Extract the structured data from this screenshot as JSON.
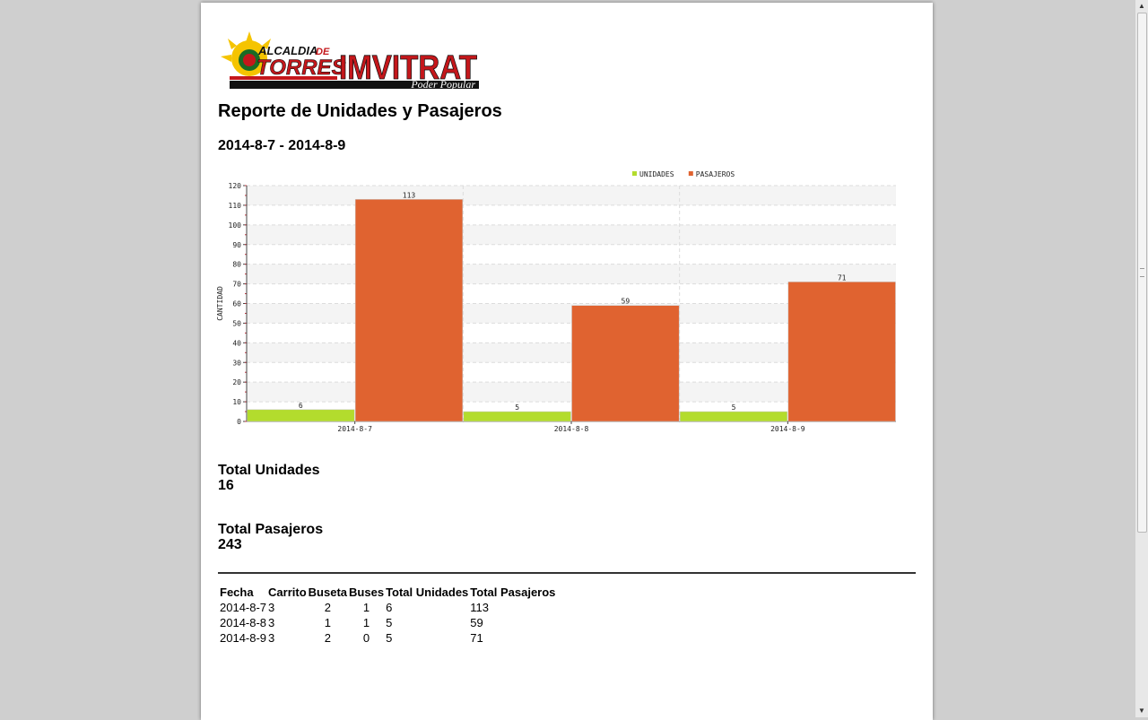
{
  "logo": {
    "line1_a": "ALCALDIA",
    "line1_b": "DE",
    "line2": "TORRES",
    "brand": "IMVITRAT",
    "tagline": "Poder Popular"
  },
  "report": {
    "title": "Reporte de Unidades y Pasajeros",
    "range": "2014-8-7 - 2014-8-9"
  },
  "chart_data": {
    "type": "bar",
    "categories": [
      "2014-8-7",
      "2014-8-8",
      "2014-8-9"
    ],
    "series": [
      {
        "name": "UNIDADES",
        "values": [
          6,
          5,
          5
        ],
        "color": "#b3dc2d"
      },
      {
        "name": "PASAJEROS",
        "values": [
          113,
          59,
          71
        ],
        "color": "#e06330"
      }
    ],
    "ylabel": "CANTIDAD",
    "ylim": [
      0,
      120
    ],
    "yticks": [
      0,
      10,
      20,
      30,
      40,
      50,
      60,
      70,
      80,
      90,
      100,
      110,
      120
    ],
    "grid": true,
    "legend": "top-right",
    "data_labels": true
  },
  "totals": {
    "unidades_label": "Total Unidades",
    "unidades_value": "16",
    "pasajeros_label": "Total Pasajeros",
    "pasajeros_value": "243"
  },
  "table": {
    "headers": [
      "Fecha",
      "Carrito",
      "Buseta",
      "Buses",
      "Total Unidades",
      "Total Pasajeros"
    ],
    "rows": [
      [
        "2014-8-7",
        "3",
        "2",
        "1",
        "6",
        "113"
      ],
      [
        "2014-8-8",
        "3",
        "1",
        "1",
        "5",
        "59"
      ],
      [
        "2014-8-9",
        "3",
        "2",
        "0",
        "5",
        "71"
      ]
    ]
  },
  "scrollbar": {
    "up_icon": "▲",
    "down_icon": "▼"
  }
}
